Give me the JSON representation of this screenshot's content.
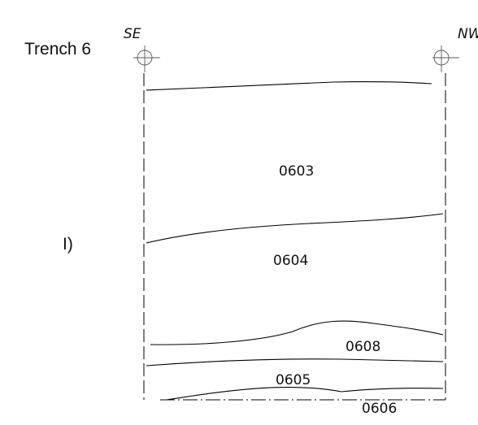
{
  "trench_title": "Trench 6",
  "direction_left": "SE",
  "direction_right": "NW",
  "panel_label": "I)",
  "contexts": [
    "0603",
    "0604",
    "0608",
    "0605",
    "0606"
  ],
  "markers": [
    "survey-marker-left-icon",
    "survey-marker-right-icon"
  ]
}
